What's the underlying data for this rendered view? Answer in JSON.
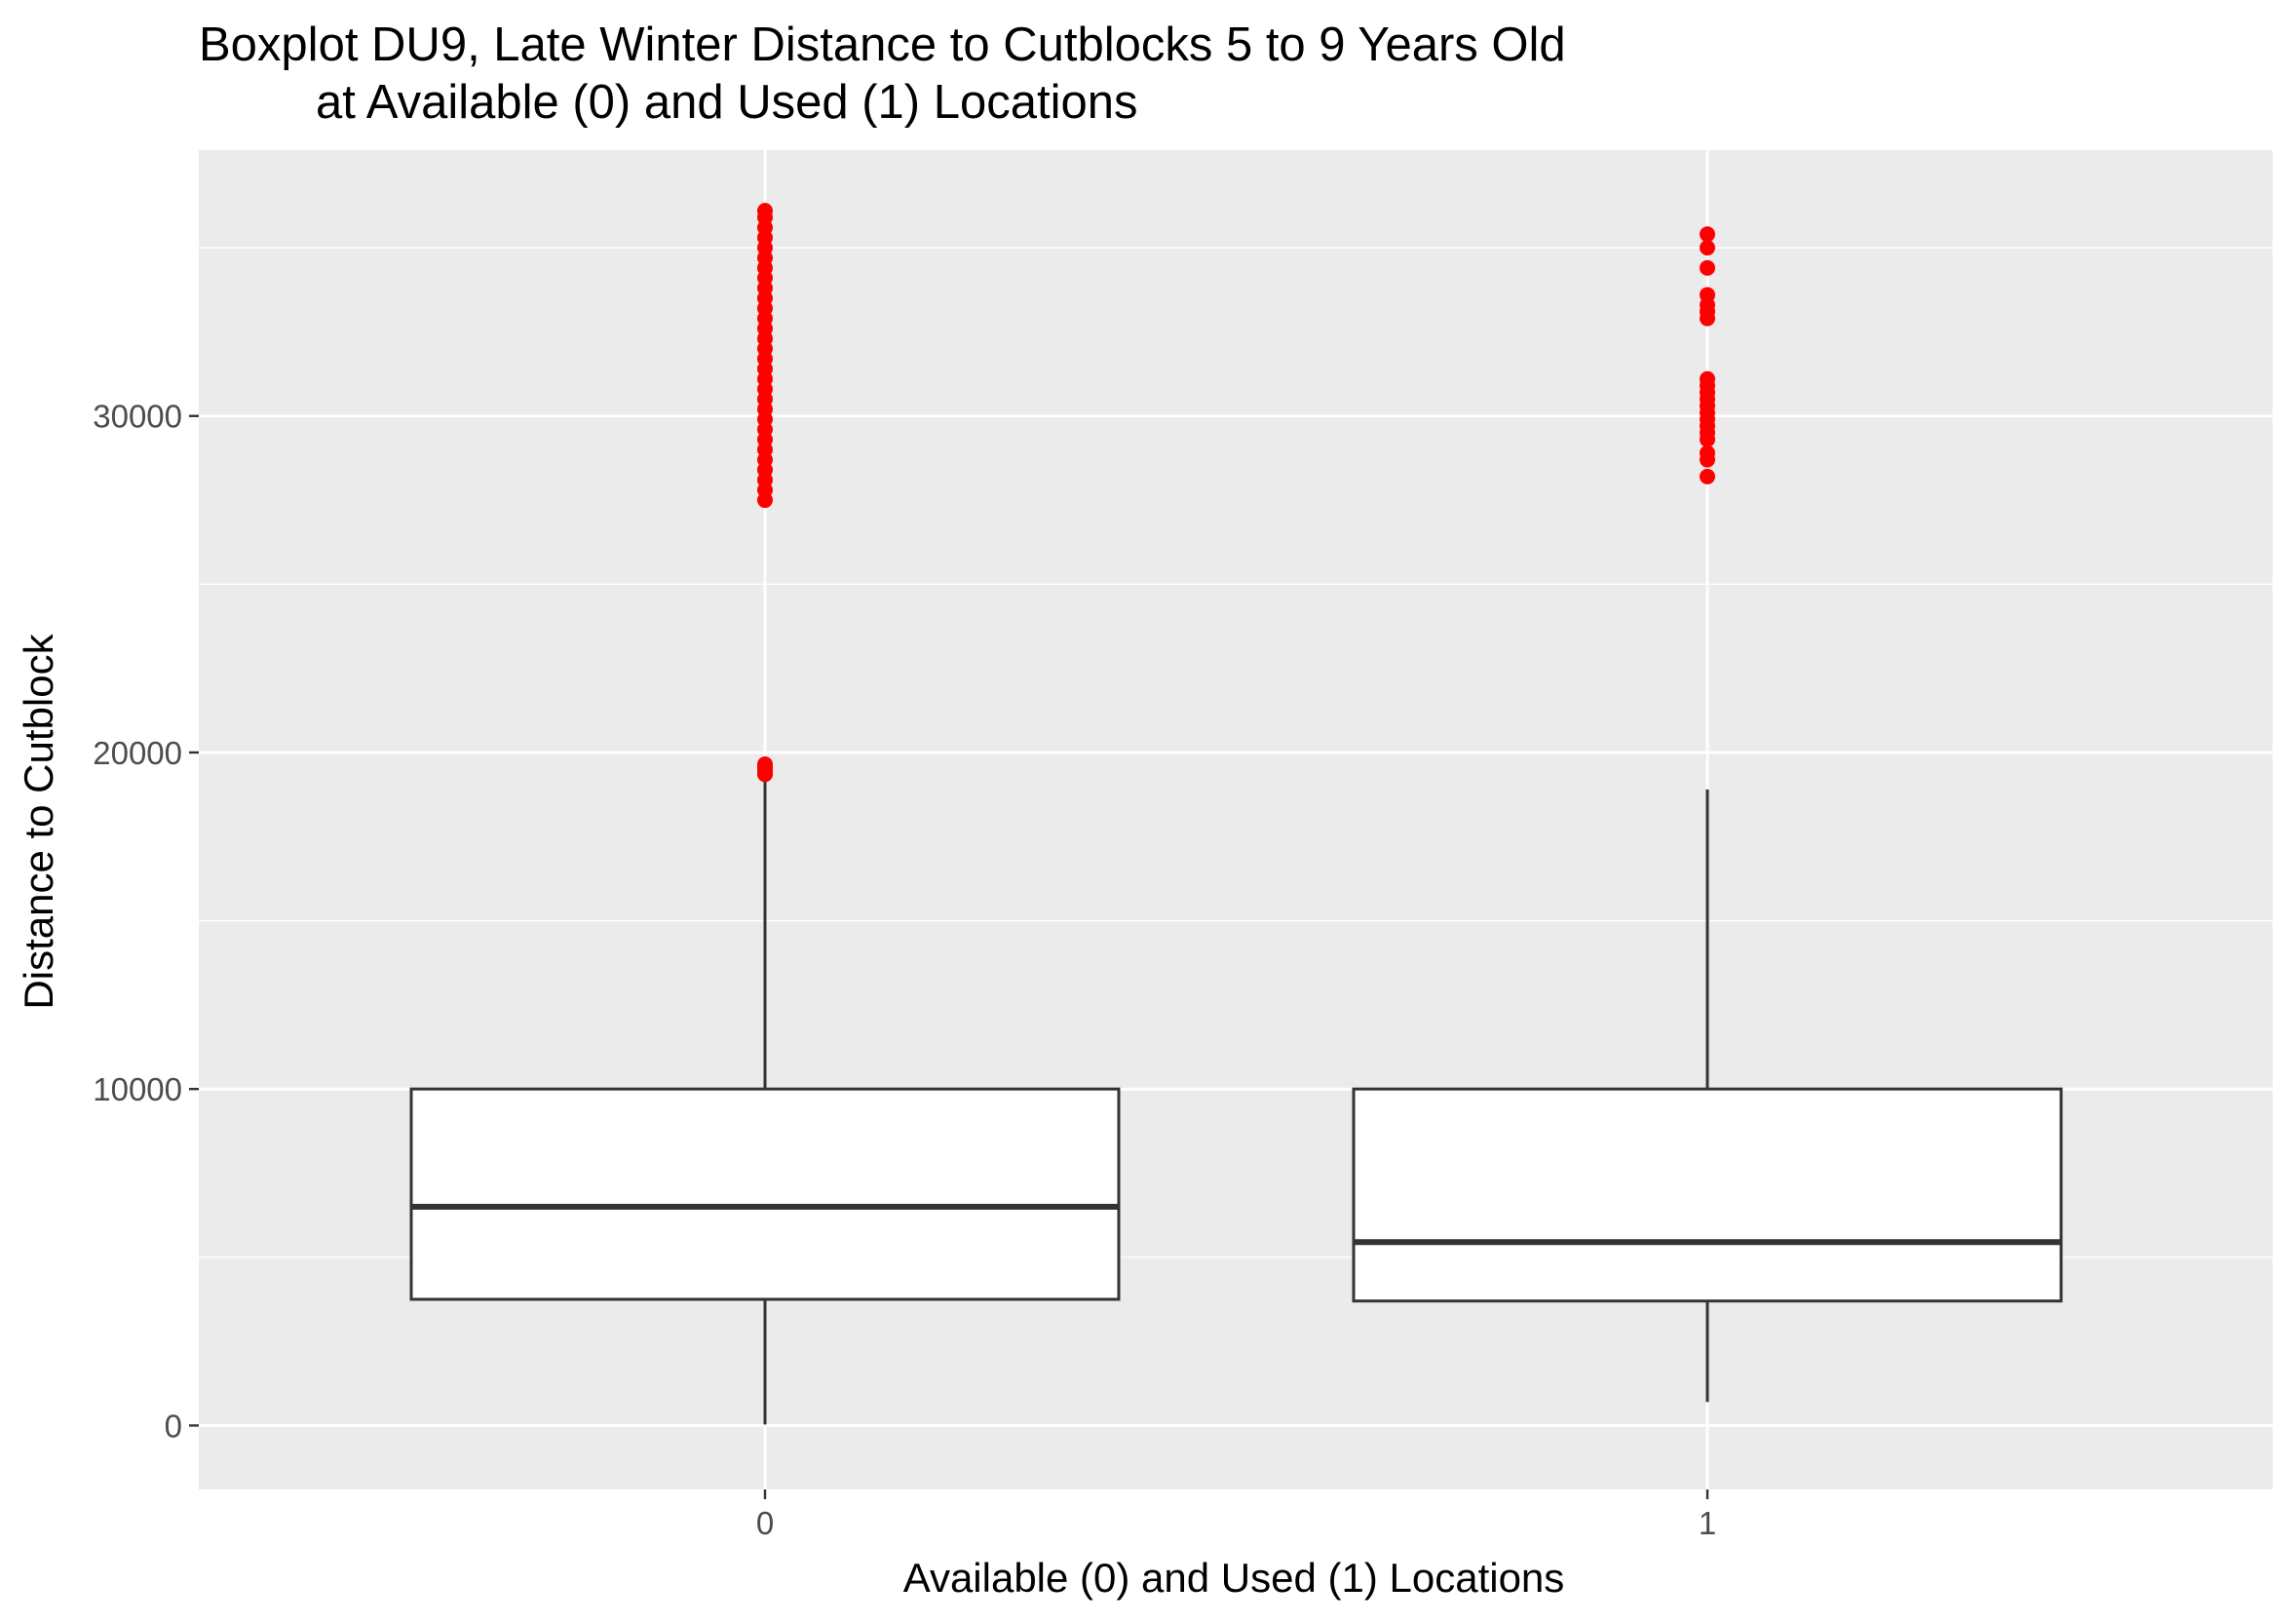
{
  "colors": {
    "panel": "#ebebeb",
    "grid": "#ffffff",
    "box_fill": "#ffffff",
    "box_line": "#333333",
    "outlier": "#ff0000",
    "tick": "#333333"
  },
  "chart_data": {
    "type": "boxplot",
    "title_lines": [
      "Boxplot DU9, Late Winter Distance to Cutblocks 5 to 9 Years Old",
      "at Available (0) and Used (1) Locations"
    ],
    "xlabel": "Available (0) and Used (1) Locations",
    "ylabel": "Distance to Cutblock",
    "categories": [
      "0",
      "1"
    ],
    "ylim": [
      -1900,
      37900
    ],
    "yticks": [
      0,
      10000,
      20000,
      30000
    ],
    "y_tick_labels": [
      "0",
      "10000",
      "20000",
      "30000"
    ],
    "y_minor_gridlines": [
      5000,
      15000,
      25000,
      35000
    ],
    "grid": true,
    "legend": "none",
    "boxes": [
      {
        "category": "0",
        "whisker_low": 30,
        "q1": 3750,
        "median": 6500,
        "q3": 10000,
        "whisker_high": 19300,
        "outliers": [
          19350,
          19400,
          19450,
          19500,
          19550,
          19600,
          19650,
          27500,
          27800,
          28100,
          28400,
          28700,
          29000,
          29300,
          29600,
          29900,
          30200,
          30500,
          30800,
          31100,
          31400,
          31700,
          32000,
          32300,
          32600,
          32900,
          33200,
          33500,
          33800,
          34100,
          34400,
          34700,
          35000,
          35300,
          35600,
          35900,
          36100
        ]
      },
      {
        "category": "1",
        "whisker_low": 700,
        "q1": 3700,
        "median": 5450,
        "q3": 10000,
        "whisker_high": 18900,
        "outliers": [
          28200,
          28700,
          28900,
          29300,
          29500,
          29700,
          29900,
          30100,
          30300,
          30500,
          30700,
          30900,
          31100,
          32900,
          33100,
          33300,
          33600,
          34400,
          35000,
          35400
        ]
      }
    ]
  }
}
